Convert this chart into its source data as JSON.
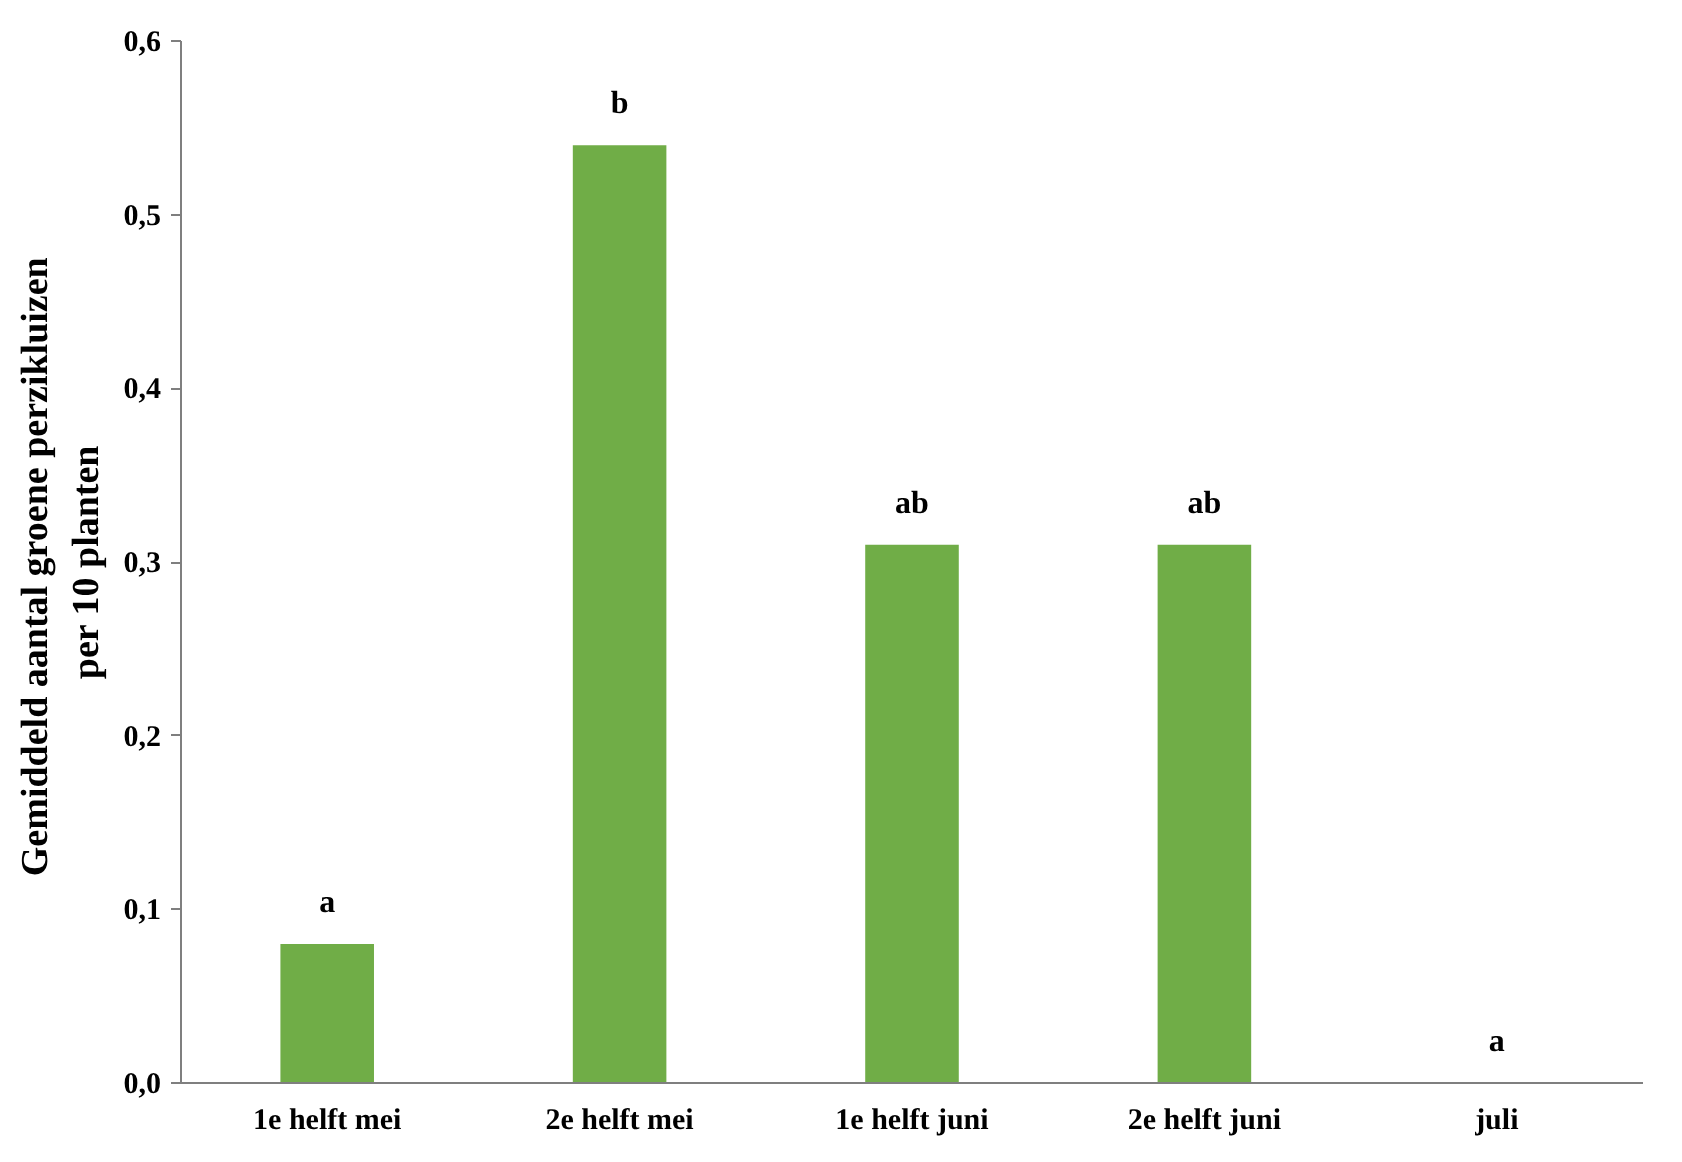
{
  "chart_data": {
    "type": "bar",
    "ylabel": "Gemiddeld  aantal groene perzikluizen\nper 10 planten",
    "categories": [
      "1e helft mei",
      "2e helft mei",
      "1e helft juni",
      "2e helft juni",
      "juli"
    ],
    "values": [
      0.08,
      0.54,
      0.31,
      0.31,
      0
    ],
    "color": "#70ad47",
    "ylim": [
      0,
      0.6
    ],
    "yticks": [
      {
        "value": 0,
        "label": "0,0"
      },
      {
        "value": 0.1,
        "label": "0,1"
      },
      {
        "value": 0.2,
        "label": "0,2"
      },
      {
        "value": 0.3,
        "label": "0,3"
      },
      {
        "value": 0.4,
        "label": "0,4"
      },
      {
        "value": 0.5,
        "label": "0,5"
      },
      {
        "value": 0.6,
        "label": "0,6"
      }
    ],
    "grid": false,
    "annotations": [
      {
        "text": "a",
        "x": "1e helft mei",
        "y": 0.08
      },
      {
        "text": "b",
        "x": "2e helft mei",
        "y": 0.54
      },
      {
        "text": "ab",
        "x": "1e helft juni",
        "y": 0.31
      },
      {
        "text": "ab",
        "x": "2e helft juni",
        "y": 0.31
      },
      {
        "text": "a",
        "x": "juli",
        "y": 0
      }
    ]
  }
}
